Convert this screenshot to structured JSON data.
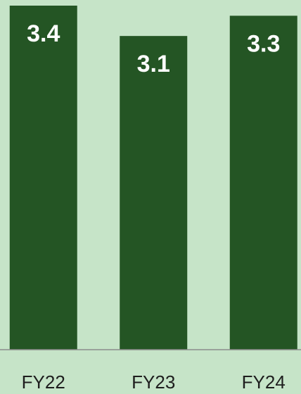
{
  "chart_data": {
    "type": "bar",
    "categories": [
      "FY22",
      "FY23",
      "FY24"
    ],
    "values": [
      3.4,
      3.1,
      3.3
    ],
    "color": "#245524",
    "ylim": [
      0,
      3.4
    ]
  }
}
